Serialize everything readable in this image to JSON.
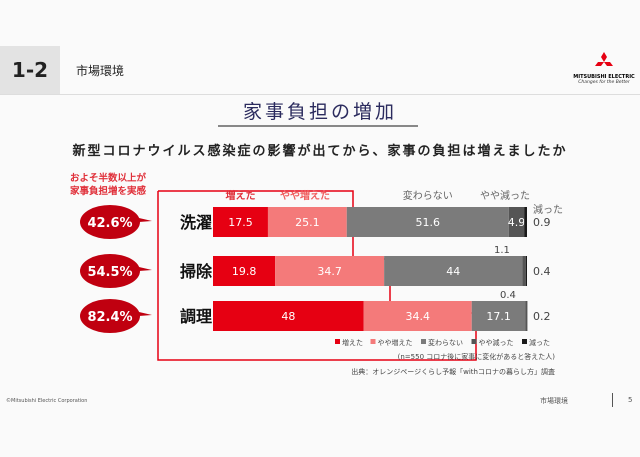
{
  "header": {
    "section_number": "1-2",
    "section_title": "市場環境",
    "logo_text": [
      "MITSUBISHI",
      "ELECTRIC"
    ],
    "logo_tagline": "Changes for the Better"
  },
  "title": "家事負担の増加",
  "question": "新型コロナウイルス感染症の影響が出てから、家事の負担は増えましたか",
  "callout": [
    "およそ半数以上が",
    "家事負担増を実感"
  ],
  "chart_data": {
    "type": "bar",
    "orientation": "horizontal-stacked-100",
    "categories": [
      "洗濯",
      "掃除",
      "調理"
    ],
    "series": [
      {
        "name": "増えた",
        "color": "#e60012",
        "values": [
          17.5,
          19.8,
          48
        ]
      },
      {
        "name": "やや増えた",
        "color": "#f47a7a",
        "values": [
          25.1,
          34.7,
          34.4
        ]
      },
      {
        "name": "変わらない",
        "color": "#7b7b7b",
        "values": [
          51.6,
          44,
          17.1
        ]
      },
      {
        "name": "やや減った",
        "color": "#555555",
        "values": [
          4.9,
          1.1,
          0.4
        ]
      },
      {
        "name": "減った",
        "color": "#1a1a1a",
        "values": [
          0.9,
          0.4,
          0.2
        ]
      }
    ],
    "totals_increase": [
      "42.6%",
      "54.5%",
      "82.4%"
    ],
    "xlim": [
      0,
      100
    ],
    "legend": "bottom-right"
  },
  "note": "(n=550 コロナ後に家事に変化があると答えた人)",
  "source": "出典：オレンジページくらし予報「withコロナの暮らし方」調査",
  "footer": {
    "copyright": "©Mitsubishi Electric Corporation",
    "section": "市場環境",
    "page": "5"
  }
}
